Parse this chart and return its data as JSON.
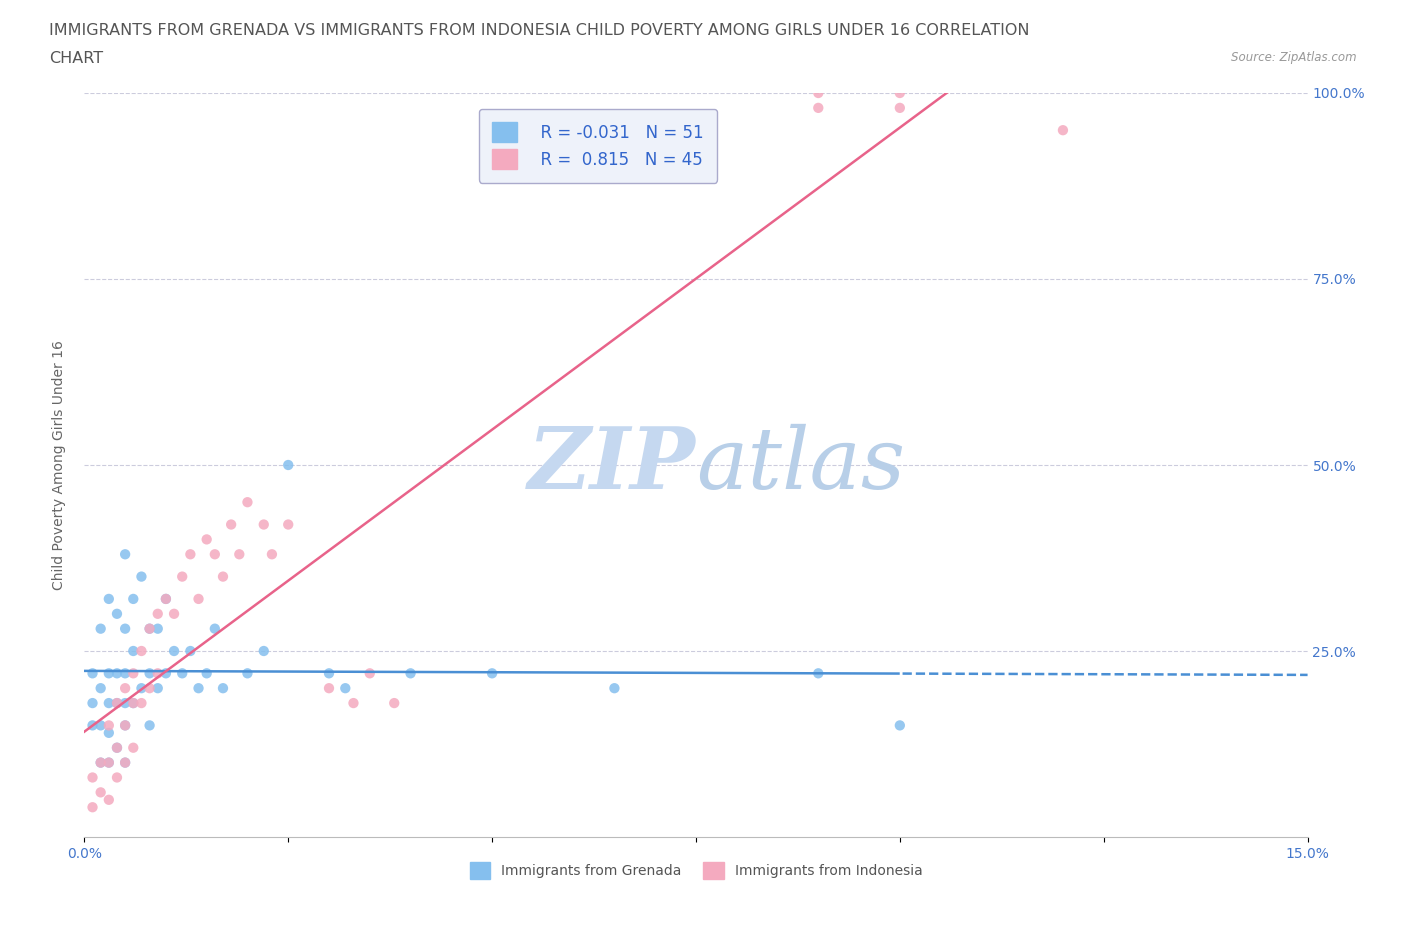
{
  "title_line1": "IMMIGRANTS FROM GRENADA VS IMMIGRANTS FROM INDONESIA CHILD POVERTY AMONG GIRLS UNDER 16 CORRELATION",
  "title_line2": "CHART",
  "source_text": "Source: ZipAtlas.com",
  "ylabel": "Child Poverty Among Girls Under 16",
  "xlim": [
    0.0,
    0.15
  ],
  "ylim": [
    0.0,
    1.0
  ],
  "xticks": [
    0.0,
    0.025,
    0.05,
    0.075,
    0.1,
    0.125,
    0.15
  ],
  "xtick_labels": [
    "0.0%",
    "",
    "",
    "",
    "",
    "",
    "15.0%"
  ],
  "yticks": [
    0.25,
    0.5,
    0.75,
    1.0
  ],
  "ytick_labels": [
    "25.0%",
    "50.0%",
    "75.0%",
    "100.0%"
  ],
  "watermark_zip": "ZIP",
  "watermark_atlas": "atlas",
  "series": [
    {
      "name": "Immigrants from Grenada",
      "R": -0.031,
      "N": 51,
      "color": "#85bfee",
      "trend_color": "#4a8fd4",
      "trend_style": "--",
      "x": [
        0.001,
        0.001,
        0.001,
        0.002,
        0.002,
        0.002,
        0.002,
        0.003,
        0.003,
        0.003,
        0.003,
        0.003,
        0.004,
        0.004,
        0.004,
        0.004,
        0.005,
        0.005,
        0.005,
        0.005,
        0.005,
        0.005,
        0.006,
        0.006,
        0.006,
        0.007,
        0.007,
        0.008,
        0.008,
        0.008,
        0.009,
        0.009,
        0.01,
        0.01,
        0.011,
        0.012,
        0.013,
        0.014,
        0.015,
        0.016,
        0.017,
        0.02,
        0.022,
        0.025,
        0.03,
        0.032,
        0.04,
        0.05,
        0.065,
        0.09,
        0.1
      ],
      "y": [
        0.22,
        0.18,
        0.15,
        0.28,
        0.2,
        0.15,
        0.1,
        0.32,
        0.22,
        0.18,
        0.14,
        0.1,
        0.3,
        0.22,
        0.18,
        0.12,
        0.38,
        0.28,
        0.22,
        0.18,
        0.15,
        0.1,
        0.32,
        0.25,
        0.18,
        0.35,
        0.2,
        0.28,
        0.22,
        0.15,
        0.28,
        0.2,
        0.32,
        0.22,
        0.25,
        0.22,
        0.25,
        0.2,
        0.22,
        0.28,
        0.2,
        0.22,
        0.25,
        0.5,
        0.22,
        0.2,
        0.22,
        0.22,
        0.2,
        0.22,
        0.15
      ]
    },
    {
      "name": "Immigrants from Indonesia",
      "R": 0.815,
      "N": 45,
      "color": "#f4aabf",
      "trend_color": "#e8638a",
      "trend_style": "-",
      "x": [
        0.001,
        0.001,
        0.002,
        0.002,
        0.003,
        0.003,
        0.003,
        0.004,
        0.004,
        0.004,
        0.005,
        0.005,
        0.005,
        0.006,
        0.006,
        0.006,
        0.007,
        0.007,
        0.008,
        0.008,
        0.009,
        0.009,
        0.01,
        0.011,
        0.012,
        0.013,
        0.014,
        0.015,
        0.016,
        0.017,
        0.018,
        0.019,
        0.02,
        0.022,
        0.023,
        0.025,
        0.03,
        0.033,
        0.035,
        0.038,
        0.09,
        0.09,
        0.1,
        0.1,
        0.12
      ],
      "y": [
        0.08,
        0.04,
        0.1,
        0.06,
        0.15,
        0.1,
        0.05,
        0.18,
        0.12,
        0.08,
        0.2,
        0.15,
        0.1,
        0.22,
        0.18,
        0.12,
        0.25,
        0.18,
        0.28,
        0.2,
        0.3,
        0.22,
        0.32,
        0.3,
        0.35,
        0.38,
        0.32,
        0.4,
        0.38,
        0.35,
        0.42,
        0.38,
        0.45,
        0.42,
        0.38,
        0.42,
        0.2,
        0.18,
        0.22,
        0.18,
        0.98,
        1.0,
        0.98,
        1.0,
        0.95
      ]
    }
  ],
  "legend_box_color": "#eef2fa",
  "legend_border_color": "#aaaacc",
  "grid_color": "#ccccdd",
  "background_color": "#ffffff",
  "watermark_zip_color": "#c5d8f0",
  "watermark_atlas_color": "#b8cfe8",
  "title_fontsize": 11.5,
  "axis_label_fontsize": 10,
  "tick_fontsize": 10,
  "legend_fontsize": 12
}
